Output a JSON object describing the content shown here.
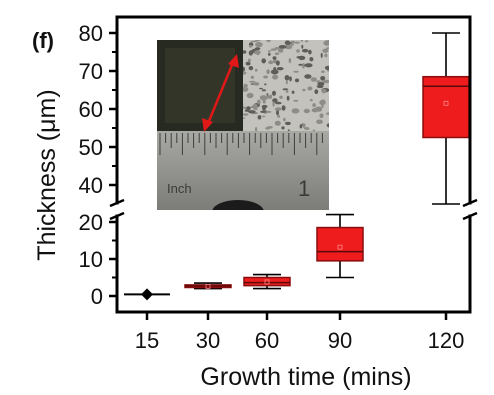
{
  "panel_label": "(f)",
  "inset": {
    "ruler_label": "Inch",
    "ruler_number": "1"
  },
  "colors": {
    "box_fill": "#ee1c1c",
    "box_edge": "#8a0d0d",
    "axis": "#000000"
  },
  "chart_data": {
    "type": "box",
    "xlabel": "Growth time (mins)",
    "ylabel": "Thickness (μm)",
    "categories": [
      "15",
      "30",
      "60",
      "90",
      "120"
    ],
    "y_axis_break": [
      22,
      33
    ],
    "y_ticks_lower": [
      0,
      10,
      20
    ],
    "y_ticks_upper": [
      40,
      50,
      60,
      70,
      80
    ],
    "boxes": [
      {
        "category": "15",
        "min": 0.2,
        "q1": 0.3,
        "median": 0.45,
        "mean": 0.45,
        "q3": 0.6,
        "max": 0.7
      },
      {
        "category": "30",
        "min": 2.0,
        "q1": 2.3,
        "median": 2.7,
        "mean": 2.6,
        "q3": 3.0,
        "max": 3.5
      },
      {
        "category": "60",
        "min": 2.0,
        "q1": 2.8,
        "median": 3.6,
        "mean": 3.8,
        "q3": 5.0,
        "max": 5.8
      },
      {
        "category": "90",
        "min": 5.0,
        "q1": 9.5,
        "median": 12.0,
        "mean": 13.2,
        "q3": 18.5,
        "max": 22.0
      },
      {
        "category": "120",
        "min": 35.0,
        "q1": 52.5,
        "median": 66.0,
        "mean": 61.5,
        "q3": 68.5,
        "max": 80.0
      }
    ]
  }
}
